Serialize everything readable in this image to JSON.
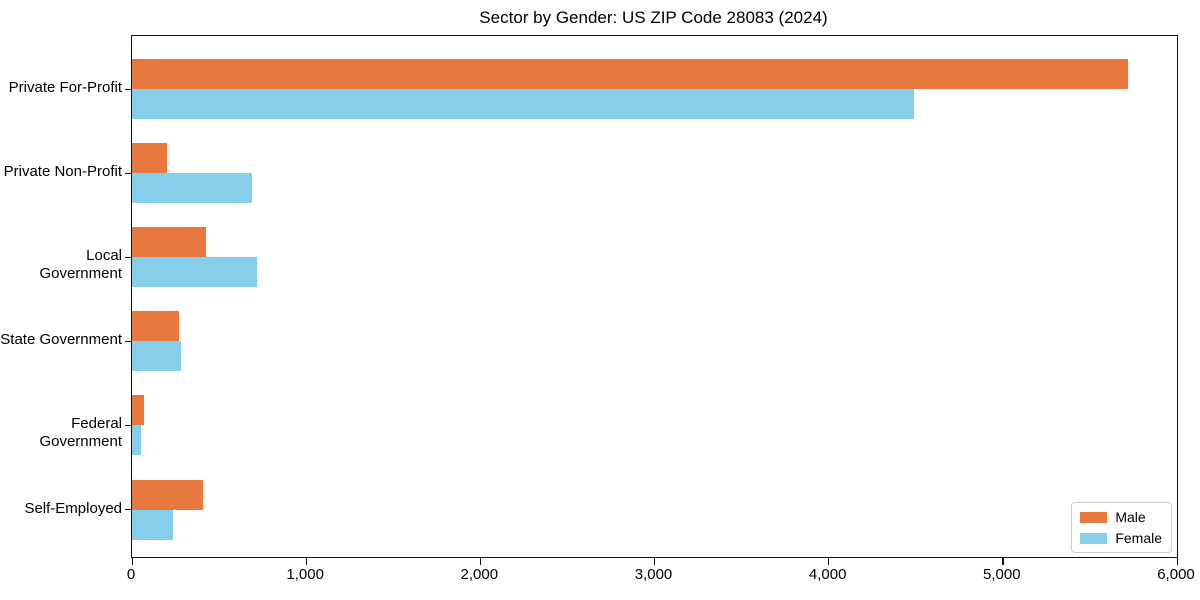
{
  "chart_data": {
    "type": "bar",
    "orientation": "horizontal",
    "title": "Sector by Gender: US ZIP Code 28083 (2024)",
    "categories": [
      "Private For-Profit",
      "Private Non-Profit",
      "Local Government",
      "State Government",
      "Federal Government",
      "Self-Employed"
    ],
    "series": [
      {
        "name": "Male",
        "color": "#e8793e",
        "values": [
          5720,
          200,
          425,
          270,
          70,
          410
        ]
      },
      {
        "name": "Female",
        "color": "#87ceeb",
        "values": [
          4490,
          690,
          720,
          280,
          50,
          235
        ]
      }
    ],
    "xlabel": "",
    "ylabel": "",
    "xlim": [
      0,
      6000
    ],
    "xticks": {
      "values": [
        0,
        1000,
        2000,
        3000,
        4000,
        5000,
        6000
      ],
      "labels": [
        "0",
        "1,000",
        "2,000",
        "3,000",
        "4,000",
        "5,000",
        "6,000"
      ]
    },
    "grid": false,
    "legend": {
      "position": "lower right",
      "entries": [
        "Male",
        "Female"
      ]
    }
  }
}
